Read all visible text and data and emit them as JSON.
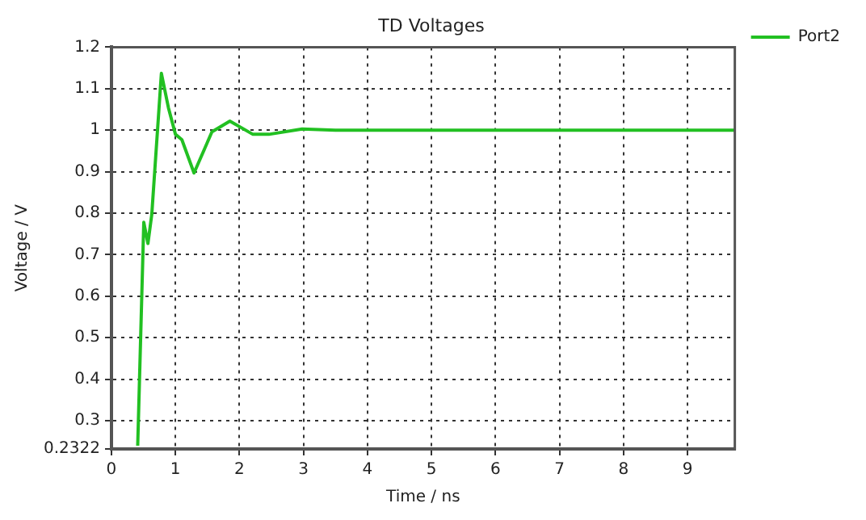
{
  "chart_data": {
    "type": "line",
    "title": "TD Voltages",
    "xlabel": "Time / ns",
    "ylabel": "Voltage / V",
    "xlim": [
      0,
      9.74
    ],
    "xticks": [
      0,
      1,
      2,
      3,
      4,
      5,
      6,
      7,
      8,
      9
    ],
    "ylim": [
      0.2322,
      1.2
    ],
    "yticks": [
      0.2322,
      0.3,
      0.4,
      0.5,
      0.6,
      0.7,
      0.8,
      0.9,
      1,
      1.1,
      1.2
    ],
    "grid": true,
    "legend": "top right",
    "marker": "none",
    "line_style": "solid",
    "series": [
      {
        "name": "Port2",
        "color": "#22c022",
        "x": [
          0.41,
          0.505,
          0.57,
          0.63,
          0.78,
          0.89,
          1.0,
          1.1,
          1.29,
          1.57,
          1.85,
          2.21,
          2.46,
          2.98,
          3.5,
          9.74
        ],
        "values": [
          0.24,
          0.778,
          0.727,
          0.797,
          1.137,
          1.054,
          0.99,
          0.977,
          0.897,
          0.996,
          1.022,
          0.99,
          0.99,
          1.003,
          1.0,
          1.0
        ]
      }
    ]
  }
}
